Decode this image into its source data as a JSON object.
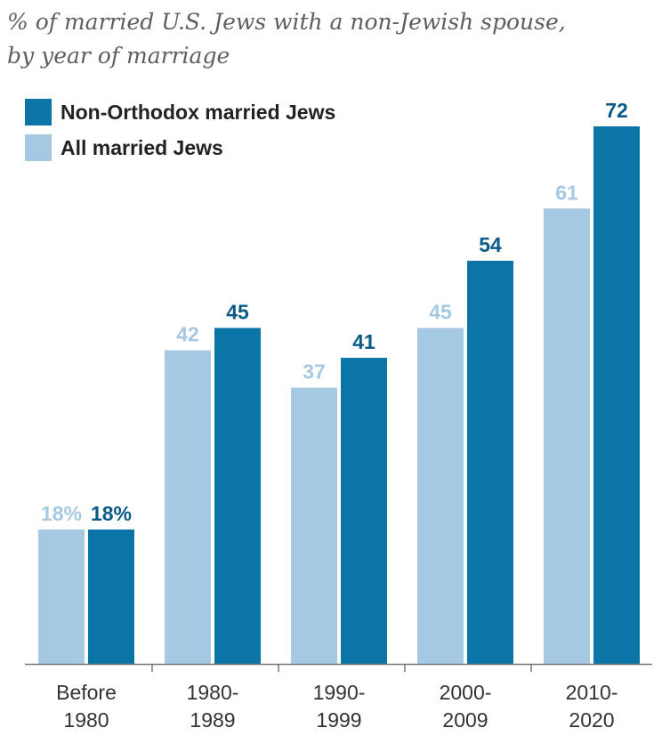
{
  "chart_data": {
    "type": "bar",
    "title_line1": "% of married U.S. Jews with a non-Jewish spouse,",
    "title_line2": "by year of marriage",
    "categories": [
      [
        "Before",
        "1980"
      ],
      [
        "1980-",
        "1989"
      ],
      [
        "1990-",
        "1999"
      ],
      [
        "2000-",
        "2009"
      ],
      [
        "2010-",
        "2020"
      ]
    ],
    "series": [
      {
        "name": "All married Jews",
        "color": "#a6c9e3",
        "values": [
          18,
          42,
          37,
          45,
          61
        ],
        "labels": [
          "18%",
          "42",
          "37",
          "45",
          "61"
        ]
      },
      {
        "name": "Non-Orthodox married Jews",
        "color": "#0b75a8",
        "label_color": "#0a5a86",
        "values": [
          18,
          45,
          41,
          54,
          72
        ],
        "labels": [
          "18%",
          "45",
          "41",
          "54",
          "72"
        ]
      }
    ],
    "legend": [
      {
        "name": "Non-Orthodox married Jews",
        "color": "#0b75a8"
      },
      {
        "name": "All married Jews",
        "color": "#a6c9e3"
      }
    ],
    "ylim": [
      0,
      72
    ],
    "xlabel": "",
    "ylabel": "",
    "grid": false,
    "legend_position": "top-left"
  }
}
